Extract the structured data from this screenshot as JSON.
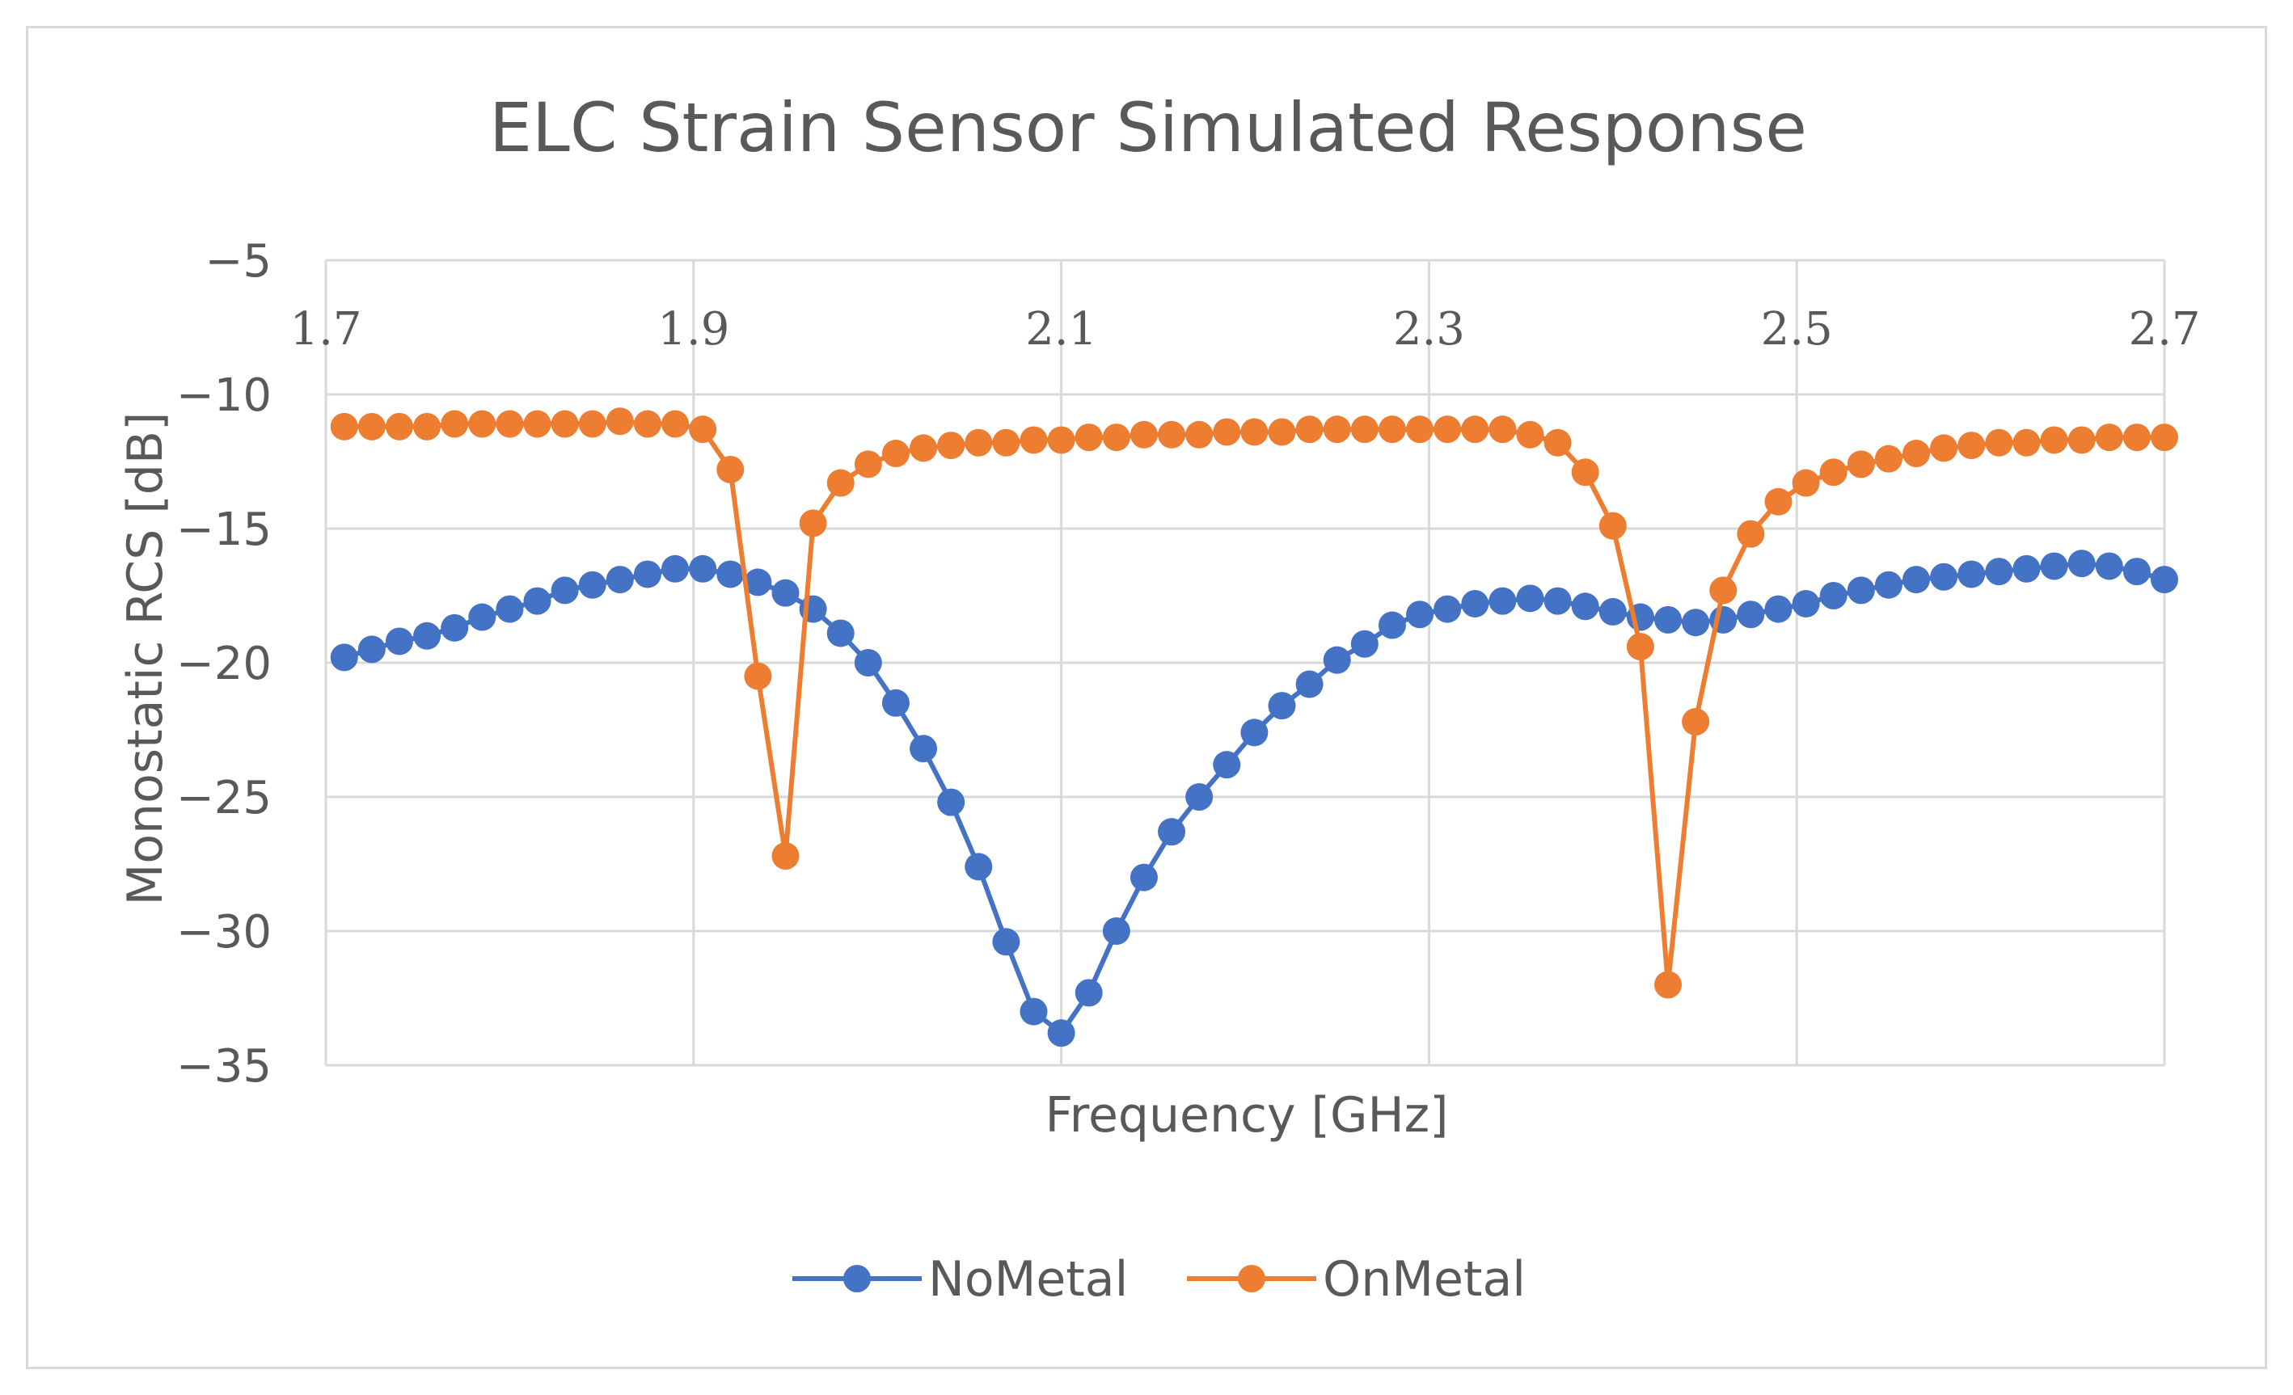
{
  "chart_data": {
    "type": "line",
    "title": "ELC Strain Sensor Simulated Response",
    "xlabel": "Frequency [GHz]",
    "ylabel": "Monostatic RCS [dB]",
    "xlim": [
      1.7,
      2.7
    ],
    "ylim": [
      -35,
      -5
    ],
    "x_ticks": [
      "1.7",
      "1.9",
      "2.1",
      "2.3",
      "2.5",
      "2.7"
    ],
    "y_ticks": [
      "−5",
      "−10",
      "−15",
      "−20",
      "−25",
      "−30",
      "−35"
    ],
    "x_tick_values": [
      1.7,
      1.9,
      2.1,
      2.3,
      2.5,
      2.7
    ],
    "y_tick_values": [
      -5,
      -10,
      -15,
      -20,
      -25,
      -30,
      -35
    ],
    "grid": "horizontal and vertical",
    "legend_position": "bottom-center",
    "series": [
      {
        "name": "NoMetal",
        "color": "#4472C4",
        "points": [
          [
            1.71,
            -19.8
          ],
          [
            1.725,
            -19.5
          ],
          [
            1.74,
            -19.2
          ],
          [
            1.755,
            -19.0
          ],
          [
            1.77,
            -18.7
          ],
          [
            1.785,
            -18.3
          ],
          [
            1.8,
            -18.0
          ],
          [
            1.815,
            -17.7
          ],
          [
            1.83,
            -17.3
          ],
          [
            1.845,
            -17.1
          ],
          [
            1.86,
            -16.9
          ],
          [
            1.875,
            -16.7
          ],
          [
            1.89,
            -16.5
          ],
          [
            1.905,
            -16.5
          ],
          [
            1.92,
            -16.7
          ],
          [
            1.935,
            -17.0
          ],
          [
            1.95,
            -17.4
          ],
          [
            1.965,
            -18.0
          ],
          [
            1.98,
            -18.9
          ],
          [
            1.995,
            -20.0
          ],
          [
            2.01,
            -21.5
          ],
          [
            2.025,
            -23.2
          ],
          [
            2.04,
            -25.2
          ],
          [
            2.055,
            -27.6
          ],
          [
            2.07,
            -30.4
          ],
          [
            2.085,
            -33.0
          ],
          [
            2.1,
            -33.8
          ],
          [
            2.115,
            -32.3
          ],
          [
            2.13,
            -30.0
          ],
          [
            2.145,
            -28.0
          ],
          [
            2.16,
            -26.3
          ],
          [
            2.175,
            -25.0
          ],
          [
            2.19,
            -23.8
          ],
          [
            2.205,
            -22.6
          ],
          [
            2.22,
            -21.6
          ],
          [
            2.235,
            -20.8
          ],
          [
            2.25,
            -19.9
          ],
          [
            2.265,
            -19.3
          ],
          [
            2.28,
            -18.6
          ],
          [
            2.295,
            -18.2
          ],
          [
            2.31,
            -18.0
          ],
          [
            2.325,
            -17.8
          ],
          [
            2.34,
            -17.7
          ],
          [
            2.355,
            -17.6
          ],
          [
            2.37,
            -17.7
          ],
          [
            2.385,
            -17.9
          ],
          [
            2.4,
            -18.1
          ],
          [
            2.415,
            -18.3
          ],
          [
            2.43,
            -18.4
          ],
          [
            2.445,
            -18.5
          ],
          [
            2.46,
            -18.4
          ],
          [
            2.475,
            -18.2
          ],
          [
            2.49,
            -18.0
          ],
          [
            2.505,
            -17.8
          ],
          [
            2.52,
            -17.5
          ],
          [
            2.535,
            -17.3
          ],
          [
            2.55,
            -17.1
          ],
          [
            2.565,
            -16.9
          ],
          [
            2.58,
            -16.8
          ],
          [
            2.595,
            -16.7
          ],
          [
            2.61,
            -16.6
          ],
          [
            2.625,
            -16.5
          ],
          [
            2.64,
            -16.4
          ],
          [
            2.655,
            -16.3
          ],
          [
            2.67,
            -16.4
          ],
          [
            2.685,
            -16.6
          ],
          [
            2.7,
            -16.9
          ]
        ]
      },
      {
        "name": "OnMetal",
        "color": "#ED7D31",
        "points": [
          [
            1.71,
            -11.2
          ],
          [
            1.725,
            -11.2
          ],
          [
            1.74,
            -11.2
          ],
          [
            1.755,
            -11.2
          ],
          [
            1.77,
            -11.1
          ],
          [
            1.785,
            -11.1
          ],
          [
            1.8,
            -11.1
          ],
          [
            1.815,
            -11.1
          ],
          [
            1.83,
            -11.1
          ],
          [
            1.845,
            -11.1
          ],
          [
            1.86,
            -11.0
          ],
          [
            1.875,
            -11.1
          ],
          [
            1.89,
            -11.1
          ],
          [
            1.905,
            -11.3
          ],
          [
            1.92,
            -12.8
          ],
          [
            1.935,
            -20.5
          ],
          [
            1.95,
            -27.2
          ],
          [
            1.965,
            -14.8
          ],
          [
            1.98,
            -13.3
          ],
          [
            1.995,
            -12.6
          ],
          [
            2.01,
            -12.2
          ],
          [
            2.025,
            -12.0
          ],
          [
            2.04,
            -11.9
          ],
          [
            2.055,
            -11.8
          ],
          [
            2.07,
            -11.8
          ],
          [
            2.085,
            -11.7
          ],
          [
            2.1,
            -11.7
          ],
          [
            2.115,
            -11.6
          ],
          [
            2.13,
            -11.6
          ],
          [
            2.145,
            -11.5
          ],
          [
            2.16,
            -11.5
          ],
          [
            2.175,
            -11.5
          ],
          [
            2.19,
            -11.4
          ],
          [
            2.205,
            -11.4
          ],
          [
            2.22,
            -11.4
          ],
          [
            2.235,
            -11.3
          ],
          [
            2.25,
            -11.3
          ],
          [
            2.265,
            -11.3
          ],
          [
            2.28,
            -11.3
          ],
          [
            2.295,
            -11.3
          ],
          [
            2.31,
            -11.3
          ],
          [
            2.325,
            -11.3
          ],
          [
            2.34,
            -11.3
          ],
          [
            2.355,
            -11.5
          ],
          [
            2.37,
            -11.8
          ],
          [
            2.385,
            -12.9
          ],
          [
            2.4,
            -14.9
          ],
          [
            2.415,
            -19.4
          ],
          [
            2.43,
            -32.0
          ],
          [
            2.445,
            -22.2
          ],
          [
            2.46,
            -17.3
          ],
          [
            2.475,
            -15.2
          ],
          [
            2.49,
            -14.0
          ],
          [
            2.505,
            -13.3
          ],
          [
            2.52,
            -12.9
          ],
          [
            2.535,
            -12.6
          ],
          [
            2.55,
            -12.4
          ],
          [
            2.565,
            -12.2
          ],
          [
            2.58,
            -12.0
          ],
          [
            2.595,
            -11.9
          ],
          [
            2.61,
            -11.8
          ],
          [
            2.625,
            -11.8
          ],
          [
            2.64,
            -11.7
          ],
          [
            2.655,
            -11.7
          ],
          [
            2.67,
            -11.6
          ],
          [
            2.685,
            -11.6
          ],
          [
            2.7,
            -11.6
          ]
        ]
      }
    ]
  }
}
